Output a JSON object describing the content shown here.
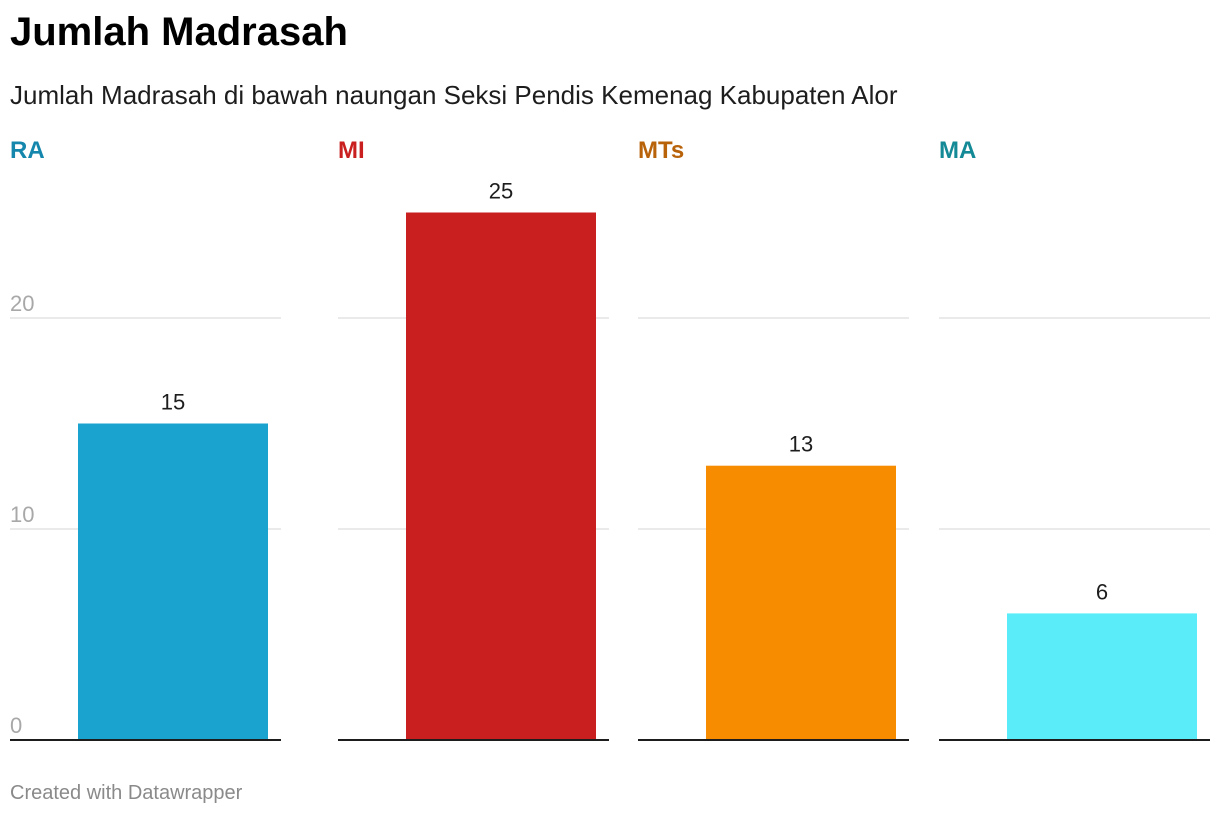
{
  "title": "Jumlah Madrasah",
  "subtitle": "Jumlah Madrasah di bawah naungan Seksi Pendis Kemenag Kabupaten Alor",
  "footer": "Created with Datawrapper",
  "chart_data": {
    "type": "bar",
    "layout": "small-multiples",
    "categories": [
      "RA",
      "MI",
      "MTs",
      "MA"
    ],
    "values": [
      15,
      25,
      13,
      6
    ],
    "data_labels": [
      "15",
      "25",
      "13",
      "6"
    ],
    "bar_colors": [
      "#1ba3cf",
      "#c91f1f",
      "#f78c00",
      "#5aecf9"
    ],
    "label_colors": [
      "#1587ad",
      "#c91f1f",
      "#b8620a",
      "#138a96"
    ],
    "ylim": [
      0,
      25
    ],
    "yticks": [
      0,
      10,
      20
    ],
    "ytick_labels": [
      "0",
      "10",
      "20"
    ],
    "grid": true,
    "xlabel": "",
    "ylabel": ""
  }
}
